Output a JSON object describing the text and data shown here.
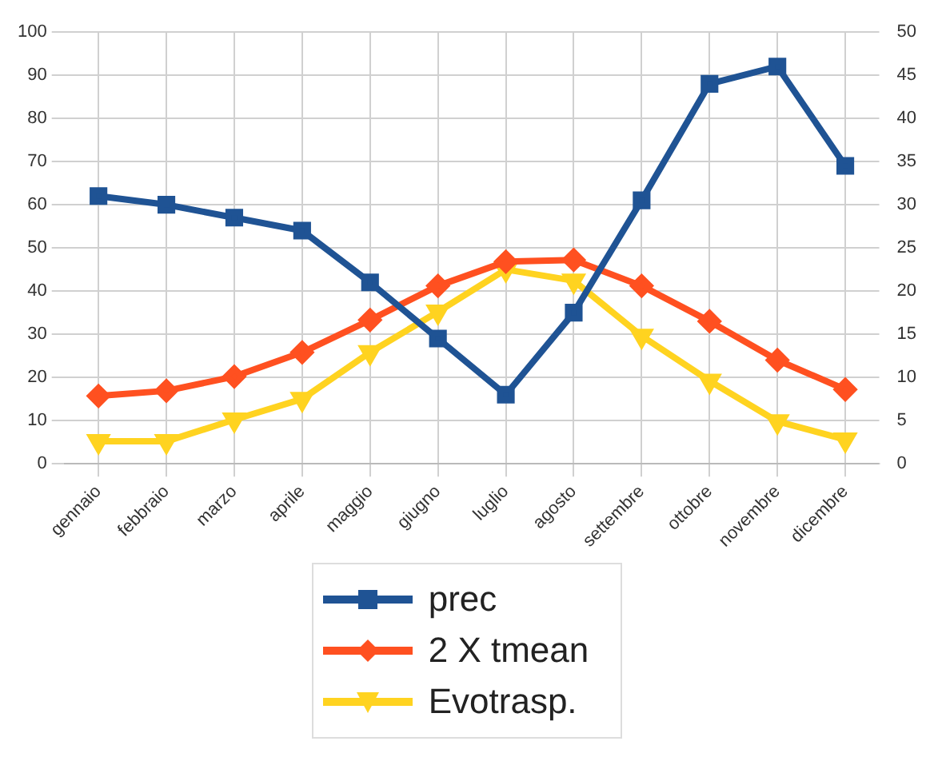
{
  "chart_data": {
    "type": "line",
    "categories": [
      "gennaio",
      "febbraio",
      "marzo",
      "aprile",
      "maggio",
      "giugno",
      "luglio",
      "agosto",
      "settembre",
      "ottobre",
      "novembre",
      "dicembre"
    ],
    "series": [
      {
        "name": "prec",
        "color": "#1f5394",
        "marker": "square",
        "values": [
          62,
          60,
          57,
          54,
          42,
          29,
          16,
          35,
          61,
          88,
          92,
          69
        ]
      },
      {
        "name": "2 X tmean",
        "color": "#ff5020",
        "marker": "diamond",
        "values": [
          15.7,
          16.9,
          20.2,
          25.8,
          33.3,
          41.2,
          46.8,
          47.2,
          41.2,
          33,
          24,
          17.2
        ]
      },
      {
        "name": "Evotrasp.",
        "color": "#ffd320",
        "marker": "triangle",
        "axis": "y2",
        "values": [
          2.6,
          2.6,
          5.1,
          7.5,
          12.9,
          17.6,
          22.5,
          21.2,
          14.8,
          9.6,
          4.9,
          2.8
        ]
      }
    ],
    "ylim": [
      0,
      100
    ],
    "yticks": [
      0,
      10,
      20,
      30,
      40,
      50,
      60,
      70,
      80,
      90,
      100
    ],
    "y2lim": [
      0,
      50
    ],
    "y2ticks": [
      0,
      5,
      10,
      15,
      20,
      25,
      30,
      35,
      40,
      45,
      50
    ],
    "grid": true,
    "legend": "bottom"
  }
}
